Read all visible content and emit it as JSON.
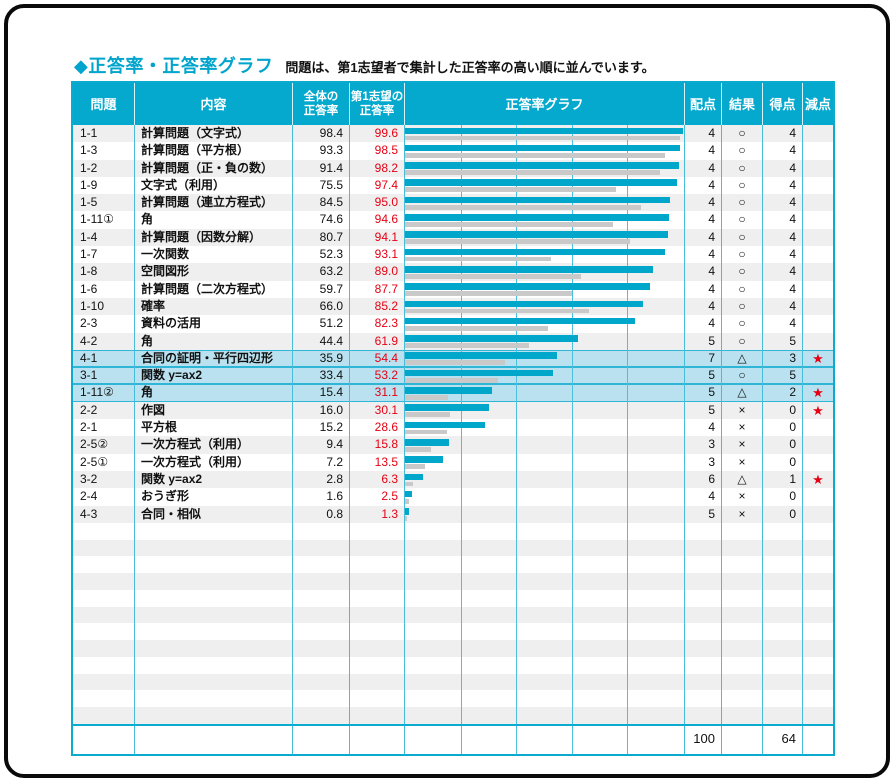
{
  "title": "◆正答率・正答率グラフ",
  "subtitle": "問題は、第1志望者で集計した正答率の高い順に並んでいます。",
  "columns": {
    "id": "問題",
    "content": "内容",
    "overall_l1": "全体の",
    "overall_l2": "正答率",
    "first_l1": "第1志望の",
    "first_l2": "正答率",
    "graph": "正答率グラフ",
    "points": "配点",
    "result": "結果",
    "score": "得点",
    "deduction": "減点"
  },
  "icons": {
    "star": "★",
    "title_diamond": "◆"
  },
  "result_marks": {
    "correct": "○",
    "partial": "△",
    "wrong": "×"
  },
  "colors": {
    "header_bg": "#05a9cd",
    "bar_first": "#00a7ca",
    "bar_overall": "#c9c9c9",
    "highlight_row": "#b9e1ef",
    "zebra": "#efefef",
    "rate_red": "#e60012",
    "grid_line": "#4cc0dc",
    "table_border": "#0aabce",
    "title_cyan": "#00a4cc"
  },
  "rows": [
    {
      "id": "1-1",
      "content": "計算問題（文字式）",
      "overall": 98.4,
      "first": 99.6,
      "points": 4,
      "result": "○",
      "score": 4,
      "star": false,
      "highlight": false
    },
    {
      "id": "1-3",
      "content": "計算問題（平方根）",
      "overall": 93.3,
      "first": 98.5,
      "points": 4,
      "result": "○",
      "score": 4,
      "star": false,
      "highlight": false
    },
    {
      "id": "1-2",
      "content": "計算問題（正・負の数）",
      "overall": 91.4,
      "first": 98.2,
      "points": 4,
      "result": "○",
      "score": 4,
      "star": false,
      "highlight": false
    },
    {
      "id": "1-9",
      "content": "文字式（利用）",
      "overall": 75.5,
      "first": 97.4,
      "points": 4,
      "result": "○",
      "score": 4,
      "star": false,
      "highlight": false
    },
    {
      "id": "1-5",
      "content": "計算問題（連立方程式）",
      "overall": 84.5,
      "first": 95.0,
      "points": 4,
      "result": "○",
      "score": 4,
      "star": false,
      "highlight": false
    },
    {
      "id": "1-11①",
      "content": "角",
      "overall": 74.6,
      "first": 94.6,
      "points": 4,
      "result": "○",
      "score": 4,
      "star": false,
      "highlight": false
    },
    {
      "id": "1-4",
      "content": "計算問題（因数分解）",
      "overall": 80.7,
      "first": 94.1,
      "points": 4,
      "result": "○",
      "score": 4,
      "star": false,
      "highlight": false
    },
    {
      "id": "1-7",
      "content": "一次関数",
      "overall": 52.3,
      "first": 93.1,
      "points": 4,
      "result": "○",
      "score": 4,
      "star": false,
      "highlight": false
    },
    {
      "id": "1-8",
      "content": "空間図形",
      "overall": 63.2,
      "first": 89.0,
      "points": 4,
      "result": "○",
      "score": 4,
      "star": false,
      "highlight": false
    },
    {
      "id": "1-6",
      "content": "計算問題（二次方程式）",
      "overall": 59.7,
      "first": 87.7,
      "points": 4,
      "result": "○",
      "score": 4,
      "star": false,
      "highlight": false
    },
    {
      "id": "1-10",
      "content": "確率",
      "overall": 66.0,
      "first": 85.2,
      "points": 4,
      "result": "○",
      "score": 4,
      "star": false,
      "highlight": false
    },
    {
      "id": "2-3",
      "content": "資料の活用",
      "overall": 51.2,
      "first": 82.3,
      "points": 4,
      "result": "○",
      "score": 4,
      "star": false,
      "highlight": false
    },
    {
      "id": "4-2",
      "content": "角",
      "overall": 44.4,
      "first": 61.9,
      "points": 5,
      "result": "○",
      "score": 5,
      "star": false,
      "highlight": false
    },
    {
      "id": "4-1",
      "content": "合同の証明・平行四辺形",
      "overall": 35.9,
      "first": 54.4,
      "points": 7,
      "result": "△",
      "score": 3,
      "star": true,
      "highlight": true
    },
    {
      "id": "3-1",
      "content": "関数 y=ax2",
      "overall": 33.4,
      "first": 53.2,
      "points": 5,
      "result": "○",
      "score": 5,
      "star": false,
      "highlight": true
    },
    {
      "id": "1-11②",
      "content": "角",
      "overall": 15.4,
      "first": 31.1,
      "points": 5,
      "result": "△",
      "score": 2,
      "star": true,
      "highlight": true
    },
    {
      "id": "2-2",
      "content": "作図",
      "overall": 16.0,
      "first": 30.1,
      "points": 5,
      "result": "×",
      "score": 0,
      "star": true,
      "highlight": false
    },
    {
      "id": "2-1",
      "content": "平方根",
      "overall": 15.2,
      "first": 28.6,
      "points": 4,
      "result": "×",
      "score": 0,
      "star": false,
      "highlight": false
    },
    {
      "id": "2-5②",
      "content": "一次方程式（利用）",
      "overall": 9.4,
      "first": 15.8,
      "points": 3,
      "result": "×",
      "score": 0,
      "star": false,
      "highlight": false
    },
    {
      "id": "2-5①",
      "content": "一次方程式（利用）",
      "overall": 7.2,
      "first": 13.5,
      "points": 3,
      "result": "×",
      "score": 0,
      "star": false,
      "highlight": false
    },
    {
      "id": "3-2",
      "content": "関数 y=ax2",
      "overall": 2.8,
      "first": 6.3,
      "points": 6,
      "result": "△",
      "score": 1,
      "star": true,
      "highlight": false
    },
    {
      "id": "2-4",
      "content": "おうぎ形",
      "overall": 1.6,
      "first": 2.5,
      "points": 4,
      "result": "×",
      "score": 0,
      "star": false,
      "highlight": false
    },
    {
      "id": "4-3",
      "content": "合同・相似",
      "overall": 0.8,
      "first": 1.3,
      "points": 5,
      "result": "×",
      "score": 0,
      "star": false,
      "highlight": false
    }
  ],
  "totals": {
    "points": "100",
    "score": "64"
  },
  "chart_data": {
    "type": "bar",
    "orientation": "horizontal",
    "title": "正答率グラフ",
    "xlim": [
      0,
      100
    ],
    "gridline_interval": 20,
    "grid": true,
    "categories": [
      "1-1",
      "1-3",
      "1-2",
      "1-9",
      "1-5",
      "1-11①",
      "1-4",
      "1-7",
      "1-8",
      "1-6",
      "1-10",
      "2-3",
      "4-2",
      "4-1",
      "3-1",
      "1-11②",
      "2-2",
      "2-1",
      "2-5②",
      "2-5①",
      "3-2",
      "2-4",
      "4-3"
    ],
    "series": [
      {
        "name": "第1志望の正答率",
        "color": "#00a7ca",
        "values": [
          99.6,
          98.5,
          98.2,
          97.4,
          95.0,
          94.6,
          94.1,
          93.1,
          89.0,
          87.7,
          85.2,
          82.3,
          61.9,
          54.4,
          53.2,
          31.1,
          30.1,
          28.6,
          15.8,
          13.5,
          6.3,
          2.5,
          1.3
        ]
      },
      {
        "name": "全体の正答率",
        "color": "#c9c9c9",
        "values": [
          98.4,
          93.3,
          91.4,
          75.5,
          84.5,
          74.6,
          80.7,
          52.3,
          63.2,
          59.7,
          66.0,
          51.2,
          44.4,
          35.9,
          33.4,
          15.4,
          16.0,
          15.2,
          9.4,
          7.2,
          2.8,
          1.6,
          0.8
        ]
      }
    ]
  }
}
